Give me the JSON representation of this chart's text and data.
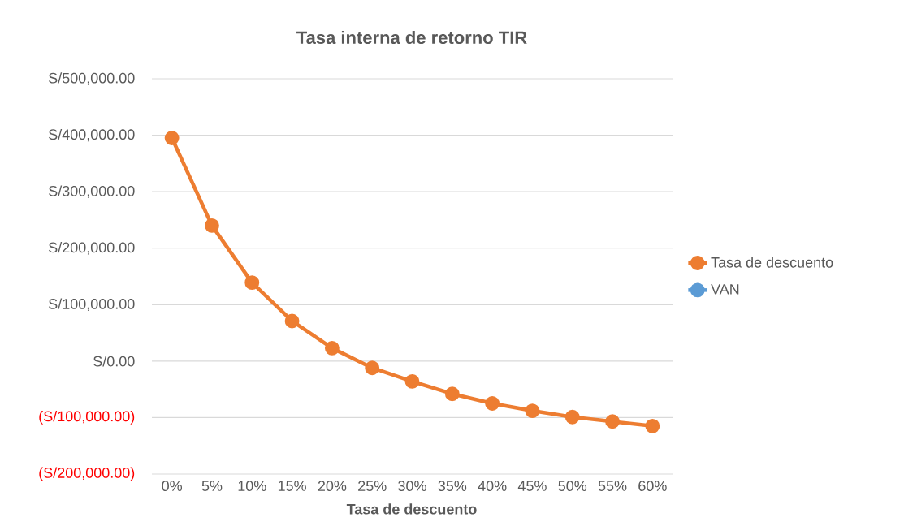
{
  "chart_data": {
    "type": "line",
    "title": "Tasa interna de retorno TIR",
    "xlabel": "Tasa de descuento",
    "categories": [
      "0%",
      "5%",
      "10%",
      "15%",
      "20%",
      "25%",
      "30%",
      "35%",
      "40%",
      "45%",
      "50%",
      "55%",
      "60%"
    ],
    "series": [
      {
        "name": "Tasa de descuento",
        "color": "#ed7d31",
        "values": [
          395000,
          240000,
          139000,
          71000,
          23000,
          -12000,
          -36000,
          -58000,
          -75000,
          -88000,
          -99000,
          -107000,
          -115000
        ]
      },
      {
        "name": "VAN",
        "color": "#5b9bd5",
        "values": [
          null,
          null,
          null,
          null,
          null,
          null,
          null,
          null,
          null,
          null,
          null,
          null,
          null
        ]
      }
    ],
    "ylim": [
      -200000,
      500000
    ],
    "yticks": [
      {
        "value": -200000,
        "label": "(S/200,000.00)"
      },
      {
        "value": -100000,
        "label": "(S/100,000.00)"
      },
      {
        "value": 0,
        "label": "S/0.00"
      },
      {
        "value": 100000,
        "label": "S/100,000.00"
      },
      {
        "value": 200000,
        "label": "S/200,000.00"
      },
      {
        "value": 300000,
        "label": "S/300,000.00"
      },
      {
        "value": 400000,
        "label": "S/400,000.00"
      },
      {
        "value": 500000,
        "label": "S/500,000.00"
      }
    ],
    "grid": "y",
    "legend": "right",
    "marker": "circle",
    "line_style": "solid"
  }
}
